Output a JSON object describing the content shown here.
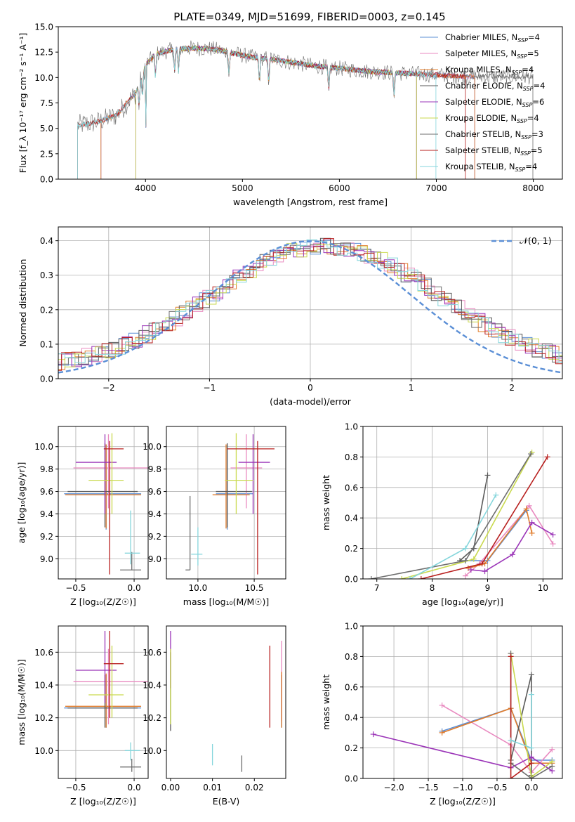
{
  "title": "PLATE=0349, MJD=51699, FIBERID=0003, z=0.145",
  "colors": {
    "series": [
      "#5b8fd6",
      "#e98ac0",
      "#e07b2a",
      "#5a5a5a",
      "#9b35b8",
      "#c9d94e",
      "#6e6e6e",
      "#b8201f",
      "#86d6dc"
    ],
    "gauss": "#5b8fd6",
    "grid": "#b0b0b0"
  },
  "chart_data": [
    {
      "id": "spectrum",
      "type": "line",
      "xlabel": "wavelength [Angstrom, rest frame]",
      "ylabel": "Flux [f_λ 10⁻¹⁷ erg cm⁻² s⁻¹ A⁻¹]",
      "xlim": [
        3100,
        8300
      ],
      "ylim": [
        0,
        15
      ],
      "xticks": [
        4000,
        5000,
        6000,
        7000,
        8000
      ],
      "yticks": [
        0.0,
        2.5,
        5.0,
        7.5,
        10.0,
        12.5,
        15.0
      ],
      "grid": false,
      "legend": "upper-right",
      "continuum": {
        "x": [
          3300,
          3500,
          3700,
          3900,
          4000,
          4100,
          4300,
          4500,
          4700,
          4900,
          5100,
          5300,
          5500,
          5700,
          5900,
          6100,
          6300,
          6500,
          6700,
          6900,
          7100,
          7300
        ],
        "y": [
          5.3,
          5.6,
          6.3,
          8.5,
          11.2,
          12.3,
          12.8,
          12.9,
          12.8,
          12.4,
          12.0,
          11.8,
          11.5,
          11.2,
          11.0,
          10.8,
          10.6,
          10.5,
          10.4,
          10.3,
          10.2,
          10.1
        ]
      },
      "observed_range": [
        3300,
        8000
      ],
      "series": [
        {
          "name": "Chabrier MILES, N_SSP=4",
          "range": [
            3540,
            7400
          ]
        },
        {
          "name": "Salpeter MILES, N_SSP=5",
          "range": [
            3540,
            7400
          ]
        },
        {
          "name": "Kroupa MILES, N_SSP=4",
          "range": [
            3540,
            7400
          ]
        },
        {
          "name": "Chabrier ELODIE, N_SSP=4",
          "range": [
            3900,
            6800
          ]
        },
        {
          "name": "Salpeter ELODIE, N_SSP=6",
          "range": [
            3900,
            6800
          ]
        },
        {
          "name": "Kroupa ELODIE, N_SSP=4",
          "range": [
            3900,
            6800
          ]
        },
        {
          "name": "Chabrier STELIB, N_SSP=3",
          "range": [
            3300,
            8000
          ]
        },
        {
          "name": "Salpeter STELIB, N_SSP=5",
          "range": [
            3300,
            7300
          ]
        },
        {
          "name": "Kroupa STELIB, N_SSP=4",
          "range": [
            3300,
            7000
          ]
        }
      ]
    },
    {
      "id": "residuals",
      "type": "step-histogram",
      "xlabel": "(data-model)/error",
      "ylabel": "Normed distribution",
      "xlim": [
        -2.5,
        2.5
      ],
      "ylim": [
        0,
        0.44
      ],
      "xticks": [
        -2,
        -1,
        0,
        1,
        2
      ],
      "yticks": [
        0.0,
        0.1,
        0.2,
        0.3,
        0.4
      ],
      "grid": true,
      "bin_width": 0.1,
      "reference": {
        "name": "𝒩(0, 1)",
        "mean": 0,
        "sigma": 1,
        "style": "dashed"
      },
      "legend": "upper-right"
    },
    {
      "id": "age_vs_Z",
      "type": "errorbar",
      "xlabel": "Z [log₁₀(Z/Z☉)]",
      "ylabel": "age  [log₁₀(age/yr)]",
      "xlim": [
        -0.65,
        0.12
      ],
      "ylim": [
        8.82,
        10.18
      ],
      "xticks": [
        -0.5,
        0.0
      ],
      "yticks": [
        9.0,
        9.2,
        9.4,
        9.6,
        9.8,
        10.0
      ],
      "grid": true,
      "points": [
        {
          "x": -0.24,
          "y": 9.58,
          "xerr": [
            0.36,
            0.3
          ],
          "yerr": [
            0.32,
            0.44
          ]
        },
        {
          "x": -0.22,
          "y": 9.81,
          "xerr": [
            0.3,
            0.34
          ],
          "yerr": [
            0.36,
            0.3
          ]
        },
        {
          "x": -0.24,
          "y": 9.57,
          "xerr": [
            0.35,
            0.3
          ],
          "yerr": [
            0.3,
            0.45
          ]
        },
        {
          "x": -0.25,
          "y": 9.6,
          "xerr": [
            0.32,
            0.28
          ],
          "yerr": [
            0.32,
            0.43
          ]
        },
        {
          "x": -0.25,
          "y": 9.86,
          "xerr": [
            0.25,
            0.1
          ],
          "yerr": [
            0.46,
            0.25
          ]
        },
        {
          "x": -0.19,
          "y": 9.7,
          "xerr": [
            0.2,
            0.1
          ],
          "yerr": [
            0.3,
            0.42
          ]
        },
        {
          "x": -0.02,
          "y": 8.9,
          "xerr": [
            0.1,
            0.08
          ],
          "yerr": [
            0.0,
            0.16
          ]
        },
        {
          "x": -0.21,
          "y": 9.98,
          "xerr": [
            0.05,
            0.12
          ],
          "yerr": [
            1.12,
            0.07
          ]
        },
        {
          "x": -0.03,
          "y": 9.05,
          "xerr": [
            0.05,
            0.08
          ],
          "yerr": [
            0.1,
            0.38
          ]
        }
      ]
    },
    {
      "id": "age_vs_mass",
      "type": "errorbar",
      "xlabel": "mass [log₁₀(M/M☉)]",
      "ylabel": "",
      "xlim": [
        9.72,
        10.78
      ],
      "ylim": [
        8.82,
        10.18
      ],
      "xticks": [
        10.0,
        10.5
      ],
      "yticks": [
        9.0,
        9.2,
        9.4,
        9.6,
        9.8,
        10.0
      ],
      "grid": true,
      "points": [
        {
          "x": 10.26,
          "y": 9.58,
          "xerr": [
            0.1,
            0.23
          ],
          "yerr": [
            0.32,
            0.44
          ]
        },
        {
          "x": 10.43,
          "y": 9.81,
          "xerr": [
            0.14,
            0.14
          ],
          "yerr": [
            0.36,
            0.3
          ]
        },
        {
          "x": 10.25,
          "y": 9.57,
          "xerr": [
            0.12,
            0.21
          ],
          "yerr": [
            0.3,
            0.45
          ]
        },
        {
          "x": 10.26,
          "y": 9.6,
          "xerr": [
            0.1,
            0.22
          ],
          "yerr": [
            0.32,
            0.43
          ]
        },
        {
          "x": 10.49,
          "y": 9.86,
          "xerr": [
            0.13,
            0.15
          ],
          "yerr": [
            0.46,
            0.25
          ]
        },
        {
          "x": 10.34,
          "y": 9.7,
          "xerr": [
            0.1,
            0.15
          ],
          "yerr": [
            0.3,
            0.42
          ]
        },
        {
          "x": 9.93,
          "y": 8.9,
          "xerr": [
            0.04,
            0.0
          ],
          "yerr": [
            0.0,
            0.66
          ]
        },
        {
          "x": 10.53,
          "y": 9.98,
          "xerr": [
            0.27,
            0.15
          ],
          "yerr": [
            1.12,
            0.07
          ]
        },
        {
          "x": 10.0,
          "y": 9.04,
          "xerr": [
            0.06,
            0.04
          ],
          "yerr": [
            0.1,
            0.24
          ]
        }
      ]
    },
    {
      "id": "weight_vs_age",
      "type": "line",
      "xlabel": "age  [log₁₀(age/yr)]",
      "ylabel": "mass weight",
      "xlim": [
        6.75,
        10.35
      ],
      "ylim": [
        0,
        1
      ],
      "xticks": [
        7,
        8,
        9,
        10
      ],
      "yticks": [
        0.0,
        0.2,
        0.4,
        0.6,
        0.8,
        1.0
      ],
      "grid": true,
      "series": [
        {
          "x": [
            8.6,
            9.0,
            9.7
          ],
          "y": [
            0.12,
            0.12,
            0.45
          ]
        },
        {
          "x": [
            8.6,
            8.85,
            9.75,
            10.18
          ],
          "y": [
            0.02,
            0.1,
            0.48,
            0.23
          ]
        },
        {
          "x": [
            8.65,
            8.95,
            9.7,
            9.8
          ],
          "y": [
            0.07,
            0.1,
            0.46,
            0.3
          ]
        },
        {
          "x": [
            8.5,
            8.75,
            9.0
          ],
          "y": [
            0.12,
            0.2,
            0.68
          ]
        },
        {
          "x": [
            8.7,
            8.95,
            9.45,
            9.8,
            10.18
          ],
          "y": [
            0.06,
            0.05,
            0.16,
            0.37,
            0.29
          ]
        },
        {
          "x": [
            7.45,
            8.75,
            9.8
          ],
          "y": [
            0.0,
            0.13,
            0.83
          ]
        },
        {
          "x": [
            6.9,
            8.6,
            9.78
          ],
          "y": [
            0.0,
            0.12,
            0.82
          ]
        },
        {
          "x": [
            7.8,
            8.9,
            10.08
          ],
          "y": [
            0.0,
            0.1,
            0.8
          ]
        },
        {
          "x": [
            7.6,
            8.6,
            9.15
          ],
          "y": [
            0.0,
            0.2,
            0.55
          ]
        }
      ]
    },
    {
      "id": "mass_vs_Z",
      "type": "errorbar",
      "xlabel": "Z [log₁₀(Z/Z☉)]",
      "ylabel": "mass [log₁₀(M/M☉)]",
      "xlim": [
        -0.65,
        0.12
      ],
      "ylim": [
        9.83,
        10.76
      ],
      "xticks": [
        -0.5,
        0.0
      ],
      "yticks": [
        10.0,
        10.2,
        10.4,
        10.6
      ],
      "grid": true,
      "points": [
        {
          "x": -0.24,
          "y": 10.26,
          "xerr": [
            0.36,
            0.3
          ],
          "yerr": [
            0.12,
            0.2
          ]
        },
        {
          "x": -0.22,
          "y": 10.42,
          "xerr": [
            0.3,
            0.34
          ],
          "yerr": [
            0.26,
            0.2
          ]
        },
        {
          "x": -0.24,
          "y": 10.27,
          "xerr": [
            0.35,
            0.3
          ],
          "yerr": [
            0.13,
            0.2
          ]
        },
        {
          "x": -0.25,
          "y": 10.26,
          "xerr": [
            0.32,
            0.28
          ],
          "yerr": [
            0.12,
            0.2
          ]
        },
        {
          "x": -0.25,
          "y": 10.49,
          "xerr": [
            0.25,
            0.1
          ],
          "yerr": [
            0.2,
            0.24
          ]
        },
        {
          "x": -0.19,
          "y": 10.34,
          "xerr": [
            0.2,
            0.1
          ],
          "yerr": [
            0.14,
            0.3
          ]
        },
        {
          "x": -0.02,
          "y": 9.9,
          "xerr": [
            0.1,
            0.08
          ],
          "yerr": [
            0.03,
            0.05
          ]
        },
        {
          "x": -0.21,
          "y": 10.53,
          "xerr": [
            0.05,
            0.12
          ],
          "yerr": [
            0.33,
            0.2
          ]
        },
        {
          "x": -0.03,
          "y": 10.0,
          "xerr": [
            0.05,
            0.08
          ],
          "yerr": [
            0.06,
            0.05
          ]
        }
      ]
    },
    {
      "id": "mass_vs_ebv",
      "type": "errorbar",
      "xlabel": "E(B-V)",
      "ylabel": "",
      "xlim": [
        -0.001,
        0.0275
      ],
      "ylim": [
        9.83,
        10.76
      ],
      "xticks": [
        0.0,
        0.01,
        0.02
      ],
      "xticklabels": [
        "0.00",
        "0.01",
        "0.02"
      ],
      "yticks": [
        10.0,
        10.2,
        10.4,
        10.6
      ],
      "grid": false,
      "points": [
        {
          "x": 0.0265,
          "y": 10.26,
          "xerr": [
            0,
            0
          ],
          "yerr": [
            0.12,
            0.2
          ]
        },
        {
          "x": 0.0265,
          "y": 10.42,
          "xerr": [
            0,
            0
          ],
          "yerr": [
            0.24,
            0.25
          ]
        },
        {
          "x": 0.0265,
          "y": 10.28,
          "xerr": [
            0,
            0
          ],
          "yerr": [
            0.14,
            0.2
          ]
        },
        {
          "x": 0.0,
          "y": 10.4,
          "xerr": [
            0,
            0
          ],
          "yerr": [
            0.28,
            0.2
          ]
        },
        {
          "x": 0.0,
          "y": 10.55,
          "xerr": [
            0,
            0
          ],
          "yerr": [
            0.17,
            0.18
          ]
        },
        {
          "x": 0.0,
          "y": 10.42,
          "xerr": [
            0,
            0
          ],
          "yerr": [
            0.26,
            0.2
          ]
        },
        {
          "x": 0.017,
          "y": 9.9,
          "xerr": [
            0,
            0
          ],
          "yerr": [
            0.03,
            0.07
          ]
        },
        {
          "x": 0.0237,
          "y": 10.38,
          "xerr": [
            0,
            0
          ],
          "yerr": [
            0.24,
            0.26
          ]
        },
        {
          "x": 0.01,
          "y": 9.98,
          "xerr": [
            0,
            0
          ],
          "yerr": [
            0.07,
            0.06
          ]
        }
      ]
    },
    {
      "id": "weight_vs_Z",
      "type": "line",
      "xlabel": "Z [log₁₀(Z/Z☉)]",
      "ylabel": "mass weight",
      "xlim": [
        -2.45,
        0.45
      ],
      "ylim": [
        0,
        1
      ],
      "xticks": [
        -2.0,
        -1.5,
        -1.0,
        -0.5,
        0.0
      ],
      "yticks": [
        0.0,
        0.2,
        0.4,
        0.6,
        0.8,
        1.0
      ],
      "grid": true,
      "series": [
        {
          "x": [
            -1.3,
            -0.3,
            0.0,
            0.3
          ],
          "y": [
            0.31,
            0.46,
            0.12,
            0.12
          ]
        },
        {
          "x": [
            -1.3,
            -0.3,
            0.0,
            0.3
          ],
          "y": [
            0.48,
            0.22,
            0.04,
            0.19
          ]
        },
        {
          "x": [
            -1.3,
            -0.3,
            0.0,
            0.3
          ],
          "y": [
            0.3,
            0.46,
            0.1,
            0.1
          ]
        },
        {
          "x": [
            -0.3,
            0.0,
            0.0
          ],
          "y": [
            0.12,
            0.68,
            0.02
          ]
        },
        {
          "x": [
            -2.3,
            -0.3,
            0.0,
            0.3
          ],
          "y": [
            0.29,
            0.07,
            0.14,
            0.05
          ]
        },
        {
          "x": [
            -0.3,
            0.0,
            0.3
          ],
          "y": [
            0.82,
            0.01,
            0.11
          ]
        },
        {
          "x": [
            -0.3,
            -0.3,
            0.0,
            0.3
          ],
          "y": [
            0.82,
            0.1,
            0.0,
            0.08
          ]
        },
        {
          "x": [
            -0.3,
            -0.3,
            0.0
          ],
          "y": [
            0.8,
            0.0,
            0.1
          ]
        },
        {
          "x": [
            -0.3,
            0.0,
            0.0
          ],
          "y": [
            0.25,
            0.2,
            0.55
          ]
        }
      ]
    }
  ]
}
